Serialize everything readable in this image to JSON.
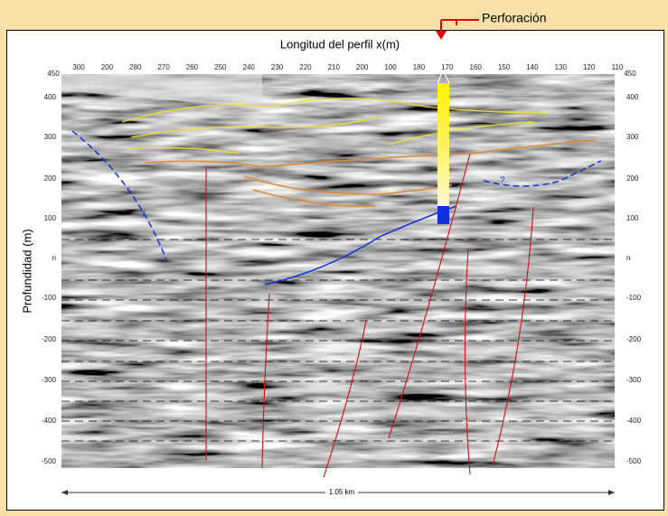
{
  "figure": {
    "annotation": "Perforación",
    "x_axis_label": "Longitud del perfil x(m)",
    "y_axis_label": "Profundidad (m)",
    "scale_label": "1.05 km",
    "top_ticks": [
      "300",
      "200",
      "280",
      "270",
      "260",
      "250",
      "240",
      "230",
      "220",
      "210",
      "200",
      "100",
      "180",
      "170",
      "160",
      "150",
      "140",
      "130",
      "120",
      "110"
    ],
    "corner_ticks": [
      "450",
      "450"
    ],
    "left_ticks": [
      "400",
      "300",
      "200",
      "100",
      "n",
      "-100",
      "-200",
      "-300",
      "-400",
      "-500"
    ],
    "right_ticks": [
      "400",
      "300",
      "200",
      "100",
      "n",
      "-100",
      "-200",
      "-300",
      "-400",
      "-500"
    ],
    "question_marks": [
      "?",
      "?"
    ]
  }
}
